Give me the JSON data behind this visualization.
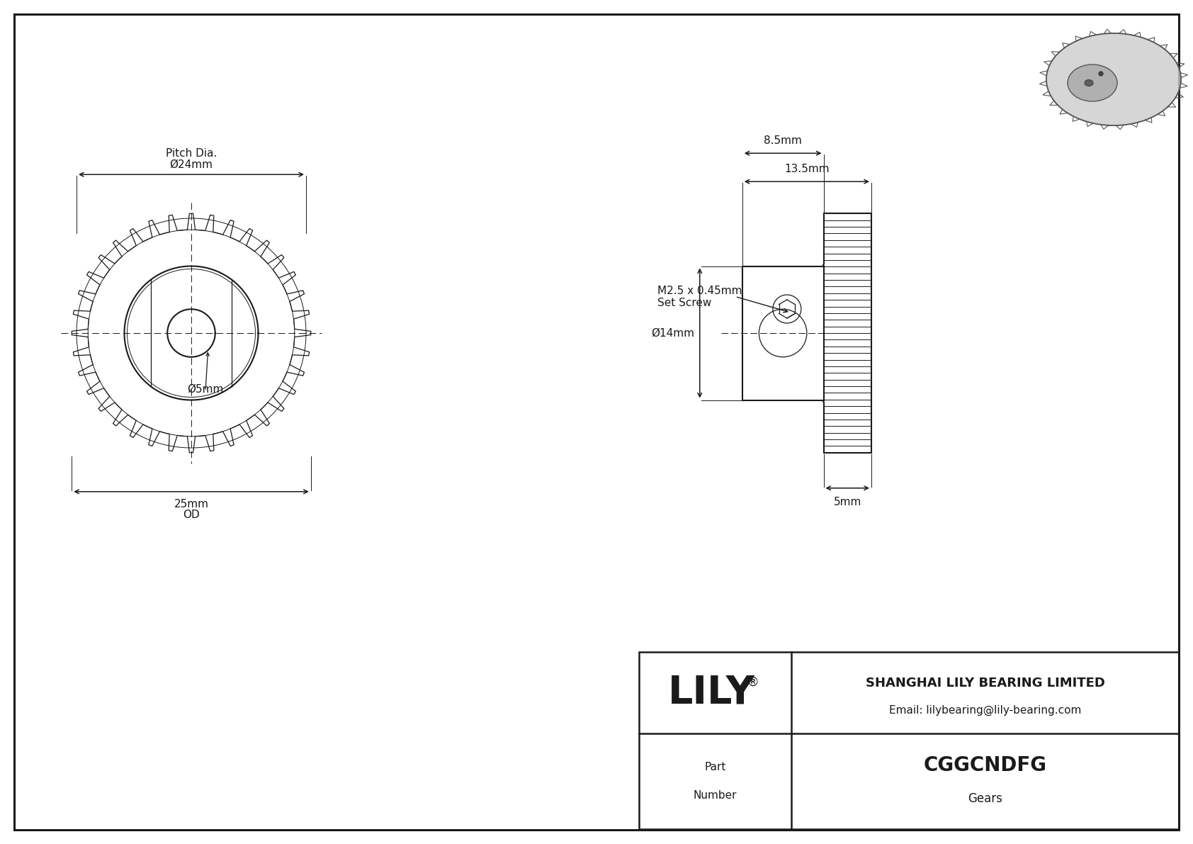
{
  "bg_color": "#ffffff",
  "lc": "#1a1a1a",
  "part_number": "CGGCNDFG",
  "part_type": "Gears",
  "company": "SHANGHAI LILY BEARING LIMITED",
  "email": "Email: lilybearing@lily-bearing.com",
  "pitch_dia_label": "Ø24mm",
  "pitch_dia_sub": "Pitch Dia.",
  "od_label": "25mm",
  "od_sub": "OD",
  "bore_label": "Ø5mm",
  "hub_dia_label": "Ø14mm",
  "face_w_label": "13.5mm",
  "hub_l_label": "8.5mm",
  "set_screw_line1": "M2.5 x 0.45mm",
  "set_screw_line2": "Set Screw",
  "tooth_w_label": "5mm",
  "num_teeth": 36
}
